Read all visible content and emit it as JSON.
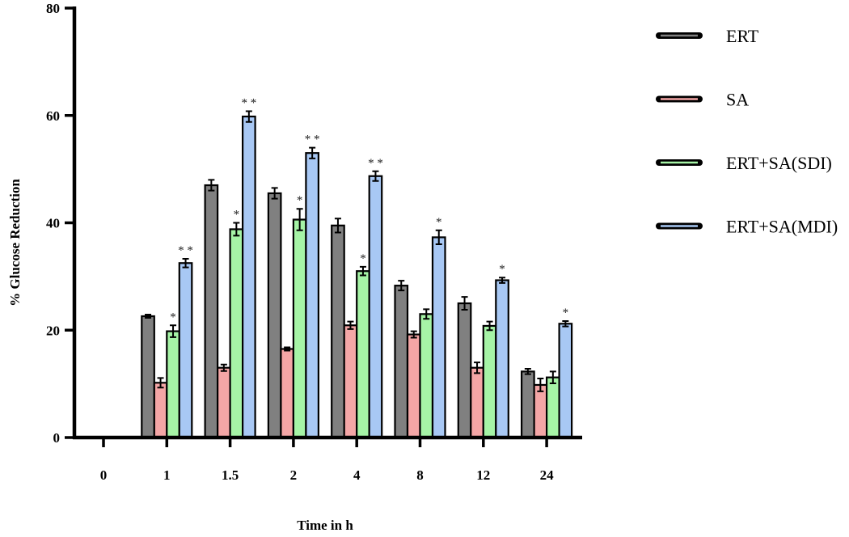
{
  "chart_data": {
    "type": "bar",
    "categories": [
      "0",
      "1",
      "1.5",
      "2",
      "4",
      "8",
      "12",
      "24"
    ],
    "xlabel": "Time in h",
    "ylabel": "% Glucose Reduction",
    "ylim": [
      0,
      80
    ],
    "yticks": [
      "0",
      "20",
      "40",
      "60",
      "80"
    ],
    "grid": false,
    "legend_position": "right",
    "series": [
      {
        "name": "ERT",
        "color": "#808080",
        "values": [
          0,
          22.6,
          47,
          45.5,
          39.5,
          28.3,
          25,
          12.3
        ],
        "errors": [
          0,
          0.3,
          1.0,
          1.0,
          1.3,
          0.9,
          1.2,
          0.5
        ],
        "annotations": [
          "",
          "",
          "",
          "",
          "",
          "",
          "",
          ""
        ]
      },
      {
        "name": "SA",
        "color": "#f4a6a6",
        "values": [
          0,
          10.2,
          13,
          16.5,
          20.9,
          19.2,
          13,
          9.8
        ],
        "errors": [
          0,
          0.9,
          0.6,
          0.3,
          0.7,
          0.6,
          1.0,
          1.2
        ],
        "annotations": [
          "",
          "",
          "",
          "",
          "",
          "",
          "",
          ""
        ]
      },
      {
        "name": "ERT+SA(SDI)",
        "color": "#a6f4a6",
        "values": [
          0,
          19.8,
          38.8,
          40.6,
          31,
          23,
          20.8,
          11.2
        ],
        "errors": [
          0,
          1.1,
          1.2,
          2.0,
          0.8,
          0.9,
          0.8,
          1.1
        ],
        "annotations": [
          "",
          "*",
          "*",
          "*",
          "*",
          "",
          "",
          ""
        ]
      },
      {
        "name": "ERT+SA(MDI)",
        "color": "#a8c8f4",
        "values": [
          0,
          32.5,
          59.8,
          53,
          48.7,
          37.3,
          29.3,
          21.2
        ],
        "errors": [
          0,
          0.8,
          1.0,
          1.0,
          0.9,
          1.3,
          0.5,
          0.5
        ],
        "annotations": [
          "",
          "* *",
          "* *",
          "* *",
          "* *",
          "*",
          "*",
          "*"
        ]
      }
    ]
  }
}
